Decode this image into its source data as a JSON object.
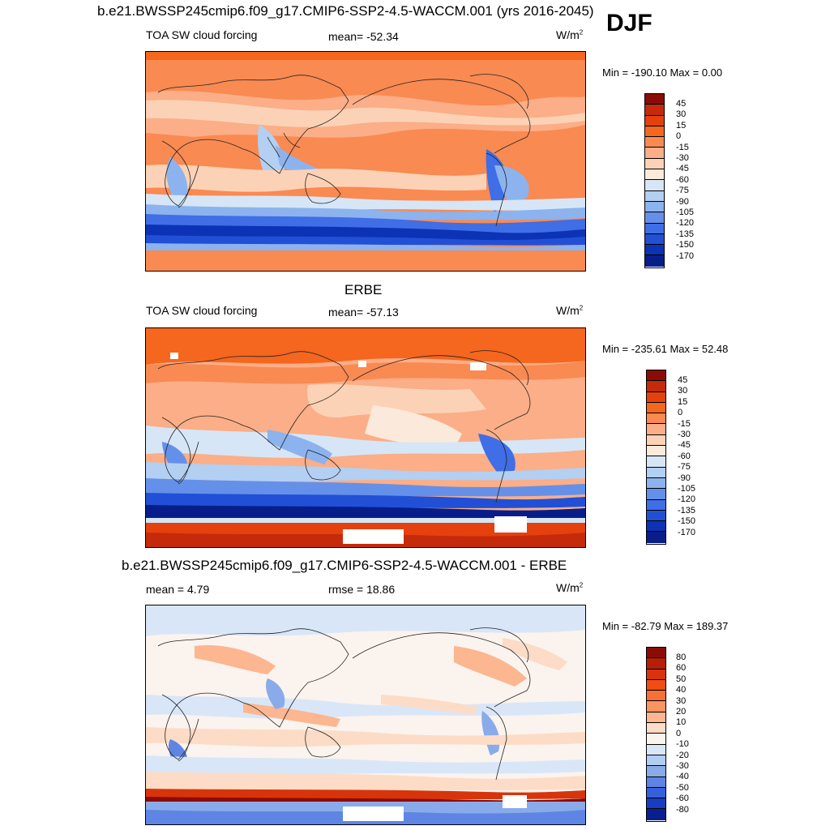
{
  "header": {
    "main_title": "b.e21.BWSSP245cmip6.f09_g17.CMIP6-SSP2-4.5-WACCM.001 (yrs 2016-2045)",
    "season": "DJF"
  },
  "panels": [
    {
      "title": "",
      "left_label": "TOA SW cloud forcing",
      "center_label": "mean= -52.34",
      "units": "W/m",
      "units_sup": "2",
      "minmax": "Min = -190.10 Max =   0.00",
      "colorbar": {
        "labels": [
          "45",
          "30",
          "15",
          "0",
          "-15",
          "-30",
          "-45",
          "-60",
          "-75",
          "-90",
          "-105",
          "-120",
          "-135",
          "-150",
          "-170"
        ],
        "colors": [
          "#8b0c06",
          "#c52a0a",
          "#e5410e",
          "#f5661f",
          "#f98a52",
          "#fbae87",
          "#fcd2b6",
          "#fbeadb",
          "#d6e6f7",
          "#b3cff2",
          "#8cb3ee",
          "#6590ea",
          "#3f6ee6",
          "#2150d6",
          "#0c33b5",
          "#071e8a"
        ]
      }
    },
    {
      "title": "ERBE",
      "left_label": "TOA SW cloud forcing",
      "center_label": "mean= -57.13",
      "units": "W/m",
      "units_sup": "2",
      "minmax": "Min = -235.61 Max =  52.48",
      "colorbar": {
        "labels": [
          "45",
          "30",
          "15",
          "0",
          "-15",
          "-30",
          "-45",
          "-60",
          "-75",
          "-90",
          "-105",
          "-120",
          "-135",
          "-150",
          "-170"
        ],
        "colors": [
          "#8b0c06",
          "#c52a0a",
          "#e5410e",
          "#f5661f",
          "#f98a52",
          "#fbae87",
          "#fcd2b6",
          "#fbeadb",
          "#d6e6f7",
          "#b3cff2",
          "#8cb3ee",
          "#6590ea",
          "#3f6ee6",
          "#2150d6",
          "#0c33b5",
          "#071e8a"
        ]
      }
    },
    {
      "title": "b.e21.BWSSP245cmip6.f09_g17.CMIP6-SSP2-4.5-WACCM.001 - ERBE",
      "left_label": "mean =   4.79",
      "center_label": "rmse =  18.86",
      "units": "W/m",
      "units_sup": "2",
      "minmax": "Min = -82.79 Max = 189.37",
      "colorbar": {
        "labels": [
          "80",
          "60",
          "50",
          "40",
          "30",
          "20",
          "10",
          "0",
          "-10",
          "-20",
          "-30",
          "-40",
          "-50",
          "-60",
          "-80"
        ],
        "colors": [
          "#8b0c06",
          "#b51e08",
          "#d8340b",
          "#ef4d12",
          "#f87037",
          "#fa9463",
          "#fcb690",
          "#fcdcc6",
          "#fbf3ee",
          "#d9e6f8",
          "#b3cdf2",
          "#8aabea",
          "#5f85e4",
          "#3460dc",
          "#173dc0",
          "#08208e"
        ]
      }
    }
  ]
}
